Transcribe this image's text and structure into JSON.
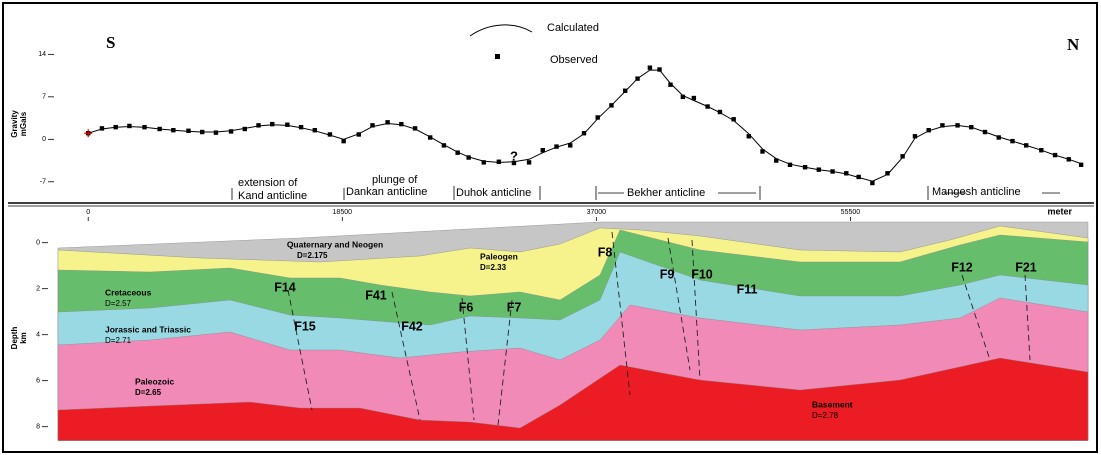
{
  "chart_data": [
    {
      "type": "gravity",
      "ylabel_lines": [
        "Gravity",
        "mGals"
      ],
      "side_labels": [
        "S",
        "N"
      ],
      "xlim": [
        -2200,
        72800
      ],
      "ylim": [
        -10,
        19
      ],
      "yticks": [
        14,
        7,
        0,
        -7
      ],
      "x": [
        0,
        1000,
        2000,
        3000,
        4100,
        5200,
        6200,
        7300,
        8300,
        9300,
        10400,
        11400,
        12400,
        13400,
        14500,
        15500,
        16500,
        17600,
        18600,
        19700,
        20700,
        21800,
        22800,
        23800,
        24900,
        25900,
        26900,
        27700,
        28800,
        29900,
        31000,
        32100,
        33100,
        34100,
        35100,
        36100,
        37100,
        38100,
        39100,
        40000,
        40900,
        41600,
        42400,
        43300,
        44100,
        45100,
        46000,
        47000,
        48100,
        49100,
        50100,
        51100,
        52200,
        53200,
        54200,
        55200,
        56100,
        57100,
        58200,
        59300,
        60200,
        61200,
        62200,
        63300,
        64300,
        65300,
        66300,
        67300,
        68300,
        69400,
        70400,
        71400,
        72300
      ],
      "series": [
        {
          "name": "Calculated",
          "color": "#000000",
          "values": [
            1,
            1.7,
            2,
            2.1,
            2,
            1.7,
            1.5,
            1.3,
            1.2,
            1.2,
            1.4,
            1.8,
            2.2,
            2.4,
            2.3,
            1.9,
            1.4,
            0.7,
            0,
            0.9,
            2.1,
            2.6,
            2.4,
            1.7,
            0.4,
            -0.9,
            -2.1,
            -2.9,
            -3.6,
            -3.8,
            -3.7,
            -3.3,
            -2.2,
            -1.3,
            -0.6,
            0.9,
            3.4,
            5.6,
            7.9,
            10,
            11.4,
            11.4,
            9.2,
            7.2,
            6.4,
            5.4,
            4.4,
            3.1,
            0.9,
            -1.6,
            -3.2,
            -4.1,
            -4.6,
            -5,
            -5.3,
            -5.7,
            -6.3,
            -6.9,
            -5.8,
            -3,
            0.2,
            1.4,
            2.1,
            2.3,
            2,
            1.2,
            0.4,
            -0.3,
            -1,
            -1.8,
            -2.6,
            -3.3,
            -4
          ]
        },
        {
          "name": "Observed",
          "color": "#000000",
          "values": [
            1,
            1.8,
            2,
            2.2,
            2,
            1.7,
            1.5,
            1.4,
            1.2,
            1.1,
            1.3,
            1.7,
            2.3,
            2.5,
            2.4,
            2,
            1.5,
            0.8,
            -0.3,
            0.8,
            2.3,
            2.8,
            2.5,
            1.8,
            0.3,
            -1,
            -2.2,
            -3,
            -3.8,
            -3.7,
            -3.9,
            -3.8,
            -1.8,
            -1.2,
            -1,
            1,
            3.6,
            5.6,
            8,
            10,
            11.8,
            11.5,
            9,
            7,
            6.8,
            5.4,
            4.5,
            3.3,
            0.5,
            -2,
            -3.5,
            -4.2,
            -4.6,
            -5,
            -5.3,
            -5.6,
            -6.2,
            -7.2,
            -5.6,
            -2.8,
            0.5,
            1.5,
            2.3,
            2.3,
            2,
            1.2,
            0.3,
            -0.3,
            -1,
            -1.8,
            -2.6,
            -3.3,
            -4.2
          ]
        }
      ],
      "annotations": [
        "extension of",
        "Kand anticline",
        "plunge of",
        "Dankan anticline",
        "Duhok anticline",
        "?",
        "Bekher anticline",
        "Mangesh anticline"
      ]
    },
    {
      "type": "section",
      "xlim": [
        -2200,
        72800
      ],
      "xticks": [
        0,
        18500,
        37000,
        55500
      ],
      "xlabel": "meter",
      "ylim": [
        -0.9,
        8.6
      ],
      "yticks": [
        0,
        2,
        4,
        6,
        8
      ],
      "ylabel_lines": [
        "Depth",
        "km"
      ],
      "layers": [
        {
          "name": "Quaternary and Neogen",
          "density": "D=2.175"
        },
        {
          "name": "Paleogen",
          "density": "D=2.33"
        },
        {
          "name": "Cretaceous",
          "density": "D=2.57"
        },
        {
          "name": "Jorassic and Triassic",
          "density": "D=2.71"
        },
        {
          "name": "Paleozoic",
          "density": "D=2.65"
        },
        {
          "name": "Basement",
          "density": "D=2.78"
        }
      ],
      "faults": [
        "F14",
        "F15",
        "F41",
        "F42",
        "F6",
        "F7",
        "F8",
        "F9",
        "F10",
        "F11",
        "F12",
        "F21"
      ]
    }
  ]
}
